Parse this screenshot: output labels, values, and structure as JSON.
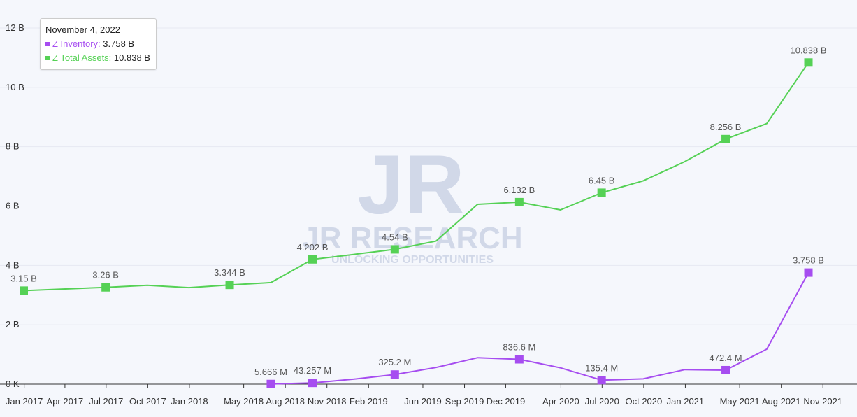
{
  "chart_data": {
    "type": "line",
    "x": [
      "2016-12-31",
      "2017-06-30",
      "2017-09-30",
      "2017-12-31",
      "2018-03-31",
      "2018-06-30",
      "2018-09-30",
      "2018-12-31",
      "2019-03-31",
      "2019-06-30",
      "2019-09-30",
      "2019-12-31",
      "2020-03-31",
      "2020-06-30",
      "2020-09-30",
      "2020-12-31",
      "2021-03-31",
      "2021-06-30",
      "2021-09-30"
    ],
    "series": [
      {
        "name": "Z Total Assets",
        "color": "#55d155",
        "values": [
          3.15,
          3.26,
          3.33,
          3.25,
          3.344,
          3.42,
          4.202,
          4.37,
          4.54,
          4.82,
          6.06,
          6.132,
          5.87,
          6.45,
          6.85,
          7.5,
          8.256,
          8.78,
          10.838
        ],
        "labels": [
          "3.15 B",
          "3.26 B",
          null,
          null,
          "3.344 B",
          null,
          "4.202 B",
          null,
          "4.54 B",
          null,
          null,
          "6.132 B",
          null,
          "6.45 B",
          null,
          null,
          "8.256 B",
          null,
          "10.838 B"
        ],
        "markers": [
          true,
          true,
          false,
          false,
          true,
          false,
          true,
          false,
          true,
          false,
          false,
          true,
          false,
          true,
          false,
          false,
          true,
          false,
          true
        ]
      },
      {
        "name": "Z Inventory",
        "color": "#a64df0",
        "values": [
          null,
          null,
          null,
          null,
          null,
          0.005666,
          0.043257,
          0.17,
          0.3252,
          0.56,
          0.89,
          0.8366,
          0.55,
          0.1354,
          0.18,
          0.49,
          0.4724,
          1.18,
          3.758
        ],
        "labels": [
          null,
          null,
          null,
          null,
          null,
          "5.666 M",
          "43.257 M",
          null,
          "325.2 M",
          null,
          null,
          "836.6 M",
          null,
          "135.4 M",
          null,
          null,
          "472.4 M",
          null,
          "3.758 B"
        ],
        "markers": [
          false,
          false,
          false,
          false,
          false,
          true,
          true,
          false,
          true,
          false,
          false,
          true,
          false,
          true,
          false,
          false,
          true,
          false,
          true
        ]
      }
    ],
    "x_ticks": [
      "2017-01-01",
      "2017-04-01",
      "2017-07-01",
      "2017-10-01",
      "2018-01-01",
      "2018-05-01",
      "2018-08-01",
      "2018-11-01",
      "2019-02-01",
      "2019-06-01",
      "2019-09-01",
      "2019-12-01",
      "2020-04-01",
      "2020-07-01",
      "2020-10-01",
      "2021-01-01",
      "2021-05-01",
      "2021-08-01",
      "2021-11-01"
    ],
    "x_tick_labels": [
      "Jan 2017",
      "Apr 2017",
      "Jul 2017",
      "Oct 2017",
      "Jan 2018",
      "May 2018",
      "Aug 2018",
      "Nov 2018",
      "Feb 2019",
      "Jun 2019",
      "Sep 2019",
      "Dec 2019",
      "Apr 2020",
      "Jul 2020",
      "Oct 2020",
      "Jan 2021",
      "May 2021",
      "Aug 2021",
      "Nov 2021"
    ],
    "y_ticks": [
      0,
      2,
      4,
      6,
      8,
      10,
      12
    ],
    "y_tick_labels": [
      "0 K",
      "2 B",
      "4 B",
      "6 B",
      "8 B",
      "10 B",
      "12 B"
    ],
    "ylim": [
      0,
      12
    ],
    "grid": true,
    "background": "#f5f7fc"
  },
  "tooltip": {
    "date": "November 4, 2022",
    "rows": [
      {
        "label": "Z Inventory:",
        "value": "3.758 B",
        "color": "#a64df0"
      },
      {
        "label": "Z Total Assets:",
        "value": "10.838 B",
        "color": "#55d155"
      }
    ]
  },
  "watermark": {
    "monogram": "JR",
    "name": "JR RESEARCH",
    "tagline": "UNLOCKING OPPORTUNITIES",
    "color": "#b5bfd9"
  }
}
